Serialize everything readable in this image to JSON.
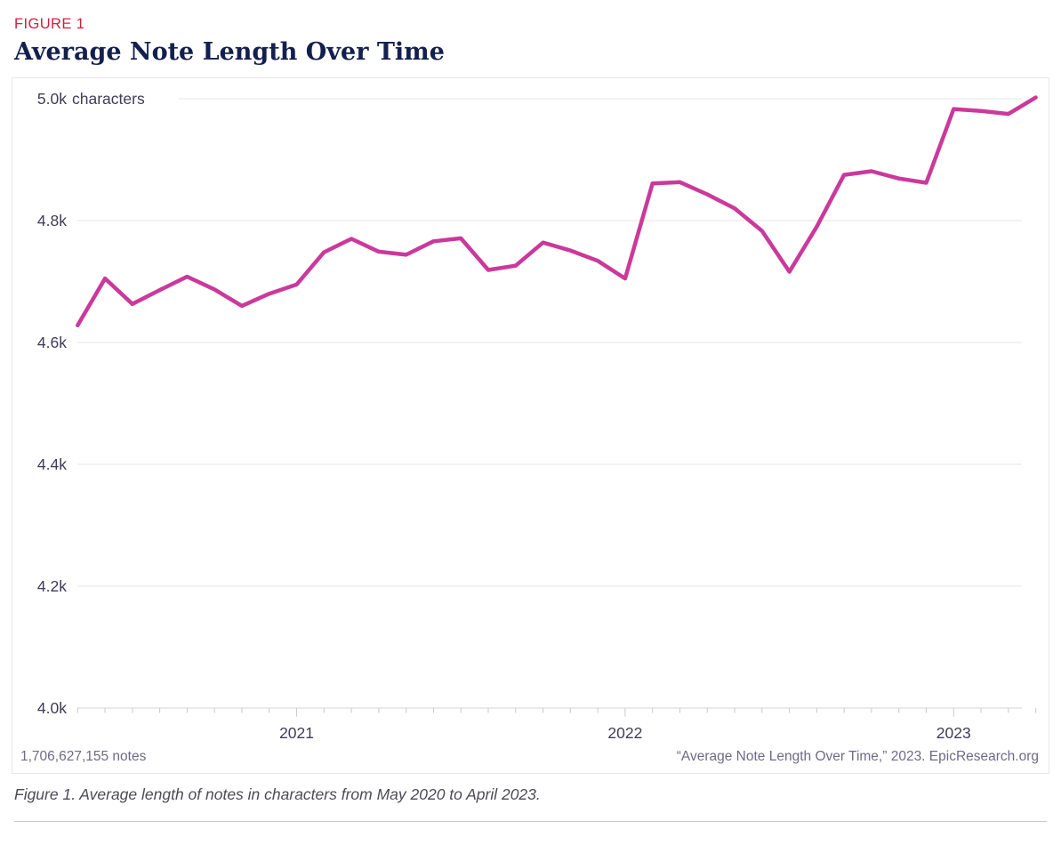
{
  "header": {
    "figure_label": "FIGURE 1",
    "title": "Average Note Length Over Time"
  },
  "footer": {
    "notes_count": "1,706,627,155 notes",
    "source": "“Average Note Length Over Time,” 2023. EpicResearch.org"
  },
  "caption": "Figure 1. Average length of notes in characters from May 2020 to April 2023.",
  "colors": {
    "figure_label": "#d01f3f",
    "title": "#13204e",
    "line": "#ca399b",
    "axis_text": "#3f3c58",
    "grid": "#e6e6e6",
    "axis_line": "#d6d6da",
    "tick": "#c9c9cd",
    "muted_text": "#6e6b85"
  },
  "chart_data": {
    "type": "line",
    "title": "Average Note Length Over Time",
    "xlabel": "",
    "ylabel": "characters",
    "ylim": [
      4000,
      5000
    ],
    "grid": true,
    "legend": false,
    "series_name": "Average note length",
    "x": [
      "May 2020",
      "Jun 2020",
      "Jul 2020",
      "Aug 2020",
      "Sep 2020",
      "Oct 2020",
      "Nov 2020",
      "Dec 2020",
      "Jan 2021",
      "Feb 2021",
      "Mar 2021",
      "Apr 2021",
      "May 2021",
      "Jun 2021",
      "Jul 2021",
      "Aug 2021",
      "Sep 2021",
      "Oct 2021",
      "Nov 2021",
      "Dec 2021",
      "Jan 2022",
      "Feb 2022",
      "Mar 2022",
      "Apr 2022",
      "May 2022",
      "Jun 2022",
      "Jul 2022",
      "Aug 2022",
      "Sep 2022",
      "Oct 2022",
      "Nov 2022",
      "Dec 2022",
      "Jan 2023",
      "Feb 2023",
      "Mar 2023",
      "Apr 2023"
    ],
    "values": [
      4628,
      4705,
      4663,
      4686,
      4708,
      4687,
      4660,
      4680,
      4695,
      4748,
      4770,
      4749,
      4744,
      4766,
      4771,
      4719,
      4726,
      4764,
      4751,
      4734,
      4705,
      4861,
      4863,
      4843,
      4820,
      4783,
      4716,
      4790,
      4875,
      4881,
      4869,
      4862,
      4983,
      4980,
      4975,
      5002
    ],
    "y_ticks": [
      {
        "value": 5000,
        "label": "5.0k",
        "suffix": " characters"
      },
      {
        "value": 4800,
        "label": "4.8k",
        "suffix": ""
      },
      {
        "value": 4600,
        "label": "4.6k",
        "suffix": ""
      },
      {
        "value": 4400,
        "label": "4.4k",
        "suffix": ""
      },
      {
        "value": 4200,
        "label": "4.2k",
        "suffix": ""
      },
      {
        "value": 4000,
        "label": "4.0k",
        "suffix": ""
      }
    ],
    "x_year_ticks": [
      {
        "month_index": 8,
        "label": "2021"
      },
      {
        "month_index": 20,
        "label": "2022"
      },
      {
        "month_index": 32,
        "label": "2023"
      }
    ]
  }
}
